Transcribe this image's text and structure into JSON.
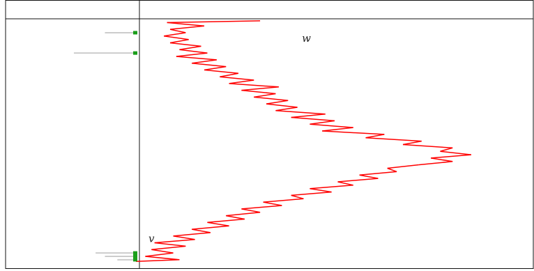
{
  "chart_data": {
    "type": "line",
    "title": "",
    "xlabel": "",
    "ylabel": "",
    "grid": false,
    "legend": "none",
    "point_labels": {
      "start": "w",
      "end": "v"
    },
    "series": [
      {
        "color": "#ff0000",
        "points": [
          [
            4.0,
            0.0
          ],
          [
            1.0,
            0.5
          ],
          [
            2.2,
            1.5
          ],
          [
            1.1,
            2.5
          ],
          [
            1.6,
            3.5
          ],
          [
            0.9,
            4.5
          ],
          [
            1.7,
            5.5
          ],
          [
            1.1,
            6.5
          ],
          [
            2.1,
            7.5
          ],
          [
            1.4,
            8.5
          ],
          [
            2.3,
            9.5
          ],
          [
            1.3,
            10.5
          ],
          [
            2.6,
            11.5
          ],
          [
            1.8,
            12.5
          ],
          [
            2.9,
            13.5
          ],
          [
            2.2,
            14.5
          ],
          [
            3.3,
            15.5
          ],
          [
            2.7,
            16.5
          ],
          [
            3.8,
            17.5
          ],
          [
            3.0,
            18.5
          ],
          [
            4.6,
            19.5
          ],
          [
            3.4,
            20.5
          ],
          [
            4.5,
            21.5
          ],
          [
            3.8,
            22.5
          ],
          [
            4.9,
            23.5
          ],
          [
            4.2,
            24.5
          ],
          [
            5.2,
            25.5
          ],
          [
            4.5,
            26.5
          ],
          [
            6.1,
            27.5
          ],
          [
            5.0,
            28.5
          ],
          [
            6.4,
            29.5
          ],
          [
            5.6,
            30.5
          ],
          [
            7.0,
            31.5
          ],
          [
            6.0,
            32.5
          ],
          [
            8.0,
            33.5
          ],
          [
            7.4,
            34.5
          ],
          [
            9.2,
            35.5
          ],
          [
            8.6,
            36.5
          ],
          [
            10.2,
            37.5
          ],
          [
            9.8,
            38.5
          ],
          [
            10.8,
            39.5
          ],
          [
            9.5,
            40.5
          ],
          [
            10.2,
            41.5
          ],
          [
            9.1,
            42.5
          ],
          [
            8.1,
            43.5
          ],
          [
            8.4,
            44.5
          ],
          [
            7.2,
            45.5
          ],
          [
            7.8,
            46.5
          ],
          [
            6.5,
            47.5
          ],
          [
            7.0,
            48.5
          ],
          [
            5.6,
            49.5
          ],
          [
            6.3,
            50.5
          ],
          [
            5.0,
            51.5
          ],
          [
            5.4,
            52.5
          ],
          [
            4.1,
            53.5
          ],
          [
            4.7,
            54.5
          ],
          [
            3.4,
            55.5
          ],
          [
            4.0,
            56.5
          ],
          [
            2.9,
            57.5
          ],
          [
            3.5,
            58.5
          ],
          [
            2.3,
            59.5
          ],
          [
            3.0,
            60.5
          ],
          [
            1.8,
            61.5
          ],
          [
            2.4,
            62.5
          ],
          [
            1.2,
            63.5
          ],
          [
            1.9,
            64.5
          ],
          [
            0.6,
            65.5
          ],
          [
            1.6,
            66.5
          ],
          [
            0.5,
            67.5
          ],
          [
            1.2,
            68.5
          ],
          [
            0.3,
            69.5
          ],
          [
            1.4,
            70.5
          ],
          [
            0.0,
            71.0
          ]
        ]
      }
    ],
    "markers": [
      {
        "y": 3.5,
        "color": "#1a9e1a",
        "trace_length": 1.0,
        "trace_color": "#cccccc"
      },
      {
        "y": 9.5,
        "color": "#1a9e1a",
        "trace_length": 2.0,
        "trace_color": "#cccccc"
      },
      {
        "y": 68.5,
        "color": "#1a9e1a",
        "trace_length": 1.3,
        "trace_color": "#cccccc"
      },
      {
        "y": 69.5,
        "color": "#1a9e1a",
        "trace_length": 1.0,
        "trace_color": "#cccccc"
      },
      {
        "y": 70.5,
        "color": "#1a9e1a",
        "trace_length": 0.6,
        "trace_color": "#cccccc"
      }
    ],
    "xlim": [
      -4.2,
      12.8
    ],
    "ylim": [
      -0.6,
      73.0
    ]
  }
}
